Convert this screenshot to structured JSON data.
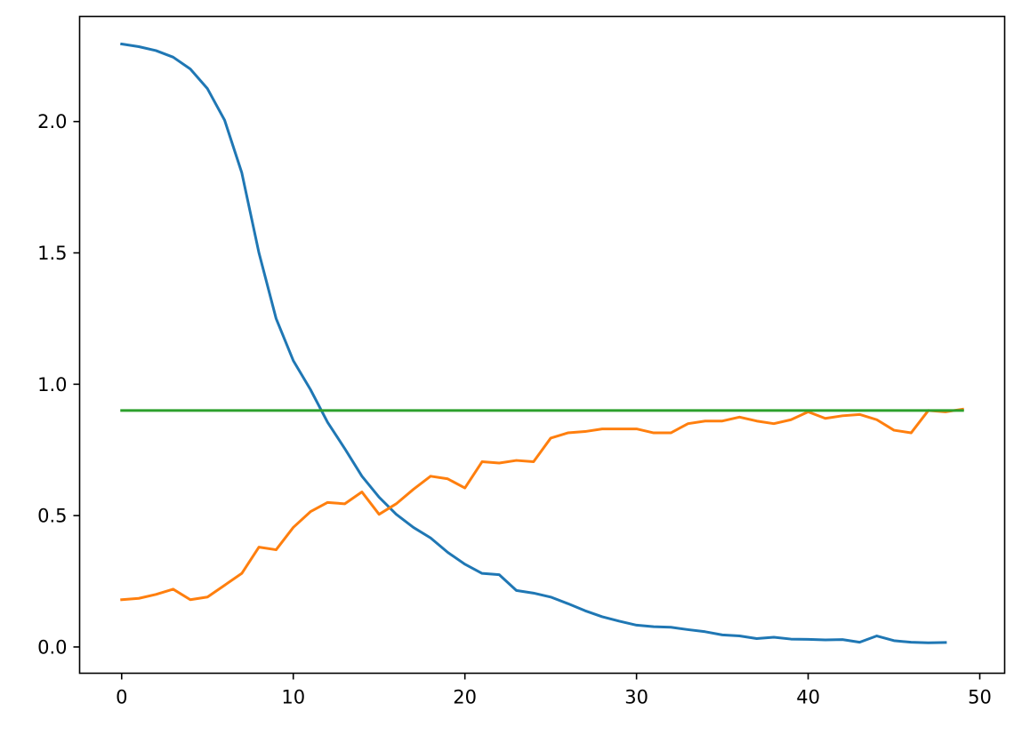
{
  "chart_data": {
    "type": "line",
    "title": "",
    "xlabel": "",
    "ylabel": "",
    "xlim": [
      -2.45,
      51.45
    ],
    "ylim": [
      -0.1,
      2.4
    ],
    "xticks": [
      0,
      10,
      20,
      30,
      40,
      50
    ],
    "xtick_labels": [
      "0",
      "10",
      "20",
      "30",
      "40",
      "50"
    ],
    "yticks": [
      0.0,
      0.5,
      1.0,
      1.5,
      2.0
    ],
    "ytick_labels": [
      "0.0",
      "0.5",
      "1.0",
      "1.5",
      "2.0"
    ],
    "grid": false,
    "legend": false,
    "series": [
      {
        "color": "#1f77b4",
        "x": [
          0,
          1,
          2,
          3,
          4,
          5,
          6,
          7,
          8,
          9,
          10,
          11,
          12,
          13,
          14,
          15,
          16,
          17,
          18,
          19,
          20,
          21,
          22,
          23,
          24,
          25,
          26,
          27,
          28,
          29,
          30,
          31,
          32,
          33,
          34,
          35,
          36,
          37,
          38,
          39,
          40,
          41,
          42,
          43,
          44,
          45,
          46,
          47,
          48
        ],
        "y": [
          2.295,
          2.285,
          2.27,
          2.245,
          2.2,
          2.125,
          2.005,
          1.805,
          1.5,
          1.25,
          1.09,
          0.98,
          0.855,
          0.755,
          0.65,
          0.57,
          0.505,
          0.455,
          0.415,
          0.36,
          0.315,
          0.28,
          0.275,
          0.215,
          0.205,
          0.19,
          0.165,
          0.138,
          0.115,
          0.098,
          0.083,
          0.077,
          0.075,
          0.066,
          0.058,
          0.046,
          0.042,
          0.032,
          0.037,
          0.03,
          0.029,
          0.027,
          0.028,
          0.018,
          0.042,
          0.024,
          0.018,
          0.016,
          0.017
        ]
      },
      {
        "color": "#ff7f0e",
        "x": [
          0,
          1,
          2,
          3,
          4,
          5,
          6,
          7,
          8,
          9,
          10,
          11,
          12,
          13,
          14,
          15,
          16,
          17,
          18,
          19,
          20,
          21,
          22,
          23,
          24,
          25,
          26,
          27,
          28,
          29,
          30,
          31,
          32,
          33,
          34,
          35,
          36,
          37,
          38,
          39,
          40,
          41,
          42,
          43,
          44,
          45,
          46,
          47,
          48,
          49
        ],
        "y": [
          0.18,
          0.185,
          0.2,
          0.22,
          0.18,
          0.19,
          0.235,
          0.28,
          0.38,
          0.37,
          0.455,
          0.515,
          0.55,
          0.545,
          0.59,
          0.505,
          0.545,
          0.6,
          0.65,
          0.64,
          0.605,
          0.705,
          0.7,
          0.71,
          0.705,
          0.795,
          0.815,
          0.82,
          0.83,
          0.83,
          0.83,
          0.815,
          0.815,
          0.85,
          0.86,
          0.86,
          0.875,
          0.86,
          0.85,
          0.865,
          0.895,
          0.87,
          0.88,
          0.885,
          0.865,
          0.825,
          0.815,
          0.9,
          0.895,
          0.905
        ]
      },
      {
        "color": "#2ca02c",
        "x": [
          0,
          49
        ],
        "y": [
          0.9,
          0.9
        ]
      }
    ]
  }
}
